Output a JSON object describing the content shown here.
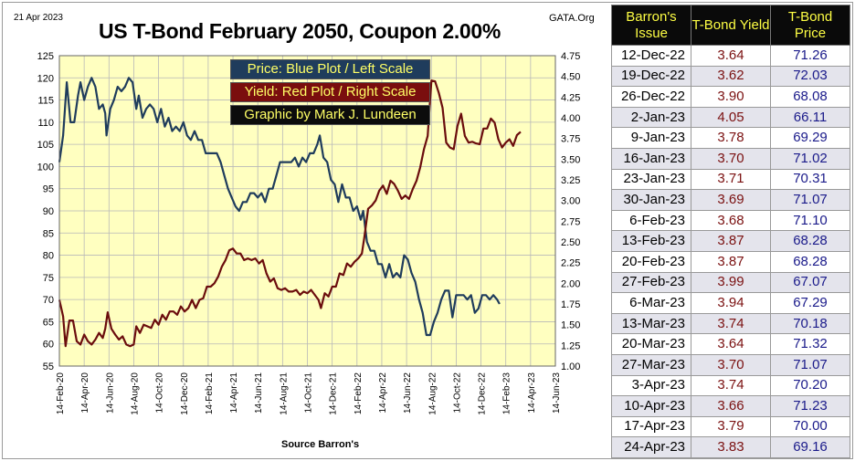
{
  "header": {
    "date": "21  Apr 2023",
    "title": "US T-Bond February 2050, Coupon 2.00%",
    "site": "GATA.Org"
  },
  "legend": [
    "Price:  Blue Plot / Left Scale",
    "Yield:  Red Plot / Right Scale",
    "Graphic by Mark J. Lundeen"
  ],
  "source": "Source Barron's",
  "colors": {
    "price_line": "#1f3c5c",
    "yield_line": "#6b0d0d",
    "plot_bg": "#ffffc0",
    "grid": "#b8b8b8"
  },
  "chart_data": {
    "type": "line",
    "title": "US T-Bond February 2050, Coupon 2.00%",
    "xlabel": "Source Barron's",
    "x_ticks": [
      "14-Feb-20",
      "14-Apr-20",
      "14-Jun-20",
      "14-Aug-20",
      "14-Oct-20",
      "14-Dec-20",
      "14-Feb-21",
      "14-Apr-21",
      "14-Jun-21",
      "14-Aug-21",
      "14-Oct-21",
      "14-Dec-21",
      "14-Feb-22",
      "14-Apr-22",
      "14-Jun-22",
      "14-Aug-22",
      "14-Oct-22",
      "14-Dec-22",
      "14-Feb-23",
      "14-Apr-23",
      "14-Jun-23"
    ],
    "left_axis": {
      "label": "Price",
      "ylim": [
        55,
        125
      ],
      "ticks": [
        "55",
        "60",
        "65",
        "70",
        "75",
        "80",
        "85",
        "90",
        "95",
        "100",
        "105",
        "110",
        "115",
        "120",
        "125"
      ]
    },
    "right_axis": {
      "label": "Yield",
      "ylim": [
        1.0,
        4.75
      ],
      "ticks": [
        "1.00",
        "1.25",
        "1.50",
        "1.75",
        "2.00",
        "2.25",
        "2.50",
        "2.75",
        "3.00",
        "3.25",
        "3.50",
        "3.75",
        "4.00",
        "4.25",
        "4.50",
        "4.75"
      ]
    },
    "grid": true,
    "x_index_range": [
      0,
      20
    ],
    "series": [
      {
        "name": "Price",
        "axis": "left",
        "points": [
          [
            0.0,
            101
          ],
          [
            0.15,
            107
          ],
          [
            0.3,
            119
          ],
          [
            0.45,
            110
          ],
          [
            0.6,
            110
          ],
          [
            0.75,
            116
          ],
          [
            0.85,
            119
          ],
          [
            1.0,
            115
          ],
          [
            1.15,
            118
          ],
          [
            1.3,
            120
          ],
          [
            1.45,
            118
          ],
          [
            1.6,
            113
          ],
          [
            1.75,
            114
          ],
          [
            1.85,
            112
          ],
          [
            1.9,
            107
          ],
          [
            2.05,
            113
          ],
          [
            2.2,
            115
          ],
          [
            2.35,
            118
          ],
          [
            2.5,
            117
          ],
          [
            2.65,
            118
          ],
          [
            2.8,
            120
          ],
          [
            2.95,
            119
          ],
          [
            3.1,
            113
          ],
          [
            3.2,
            116
          ],
          [
            3.35,
            111
          ],
          [
            3.5,
            113
          ],
          [
            3.65,
            114
          ],
          [
            3.8,
            113
          ],
          [
            3.95,
            110
          ],
          [
            4.1,
            113
          ],
          [
            4.25,
            109
          ],
          [
            4.4,
            111
          ],
          [
            4.55,
            108
          ],
          [
            4.7,
            109
          ],
          [
            4.85,
            108
          ],
          [
            5.0,
            110
          ],
          [
            5.15,
            107
          ],
          [
            5.3,
            106
          ],
          [
            5.45,
            108
          ],
          [
            5.6,
            106
          ],
          [
            5.75,
            106
          ],
          [
            5.9,
            103
          ],
          [
            6.05,
            103
          ],
          [
            6.2,
            103
          ],
          [
            6.35,
            103
          ],
          [
            6.5,
            101
          ],
          [
            6.65,
            98
          ],
          [
            6.8,
            95
          ],
          [
            6.95,
            93
          ],
          [
            7.1,
            91
          ],
          [
            7.25,
            90
          ],
          [
            7.4,
            92
          ],
          [
            7.55,
            92
          ],
          [
            7.7,
            94
          ],
          [
            7.85,
            94
          ],
          [
            8.0,
            93
          ],
          [
            8.15,
            94
          ],
          [
            8.3,
            92
          ],
          [
            8.45,
            95
          ],
          [
            8.6,
            95
          ],
          [
            8.75,
            98
          ],
          [
            8.9,
            101
          ],
          [
            9.05,
            101
          ],
          [
            9.2,
            101
          ],
          [
            9.35,
            101
          ],
          [
            9.5,
            102
          ],
          [
            9.65,
            100
          ],
          [
            9.8,
            102
          ],
          [
            9.95,
            101
          ],
          [
            10.1,
            103
          ],
          [
            10.25,
            103
          ],
          [
            10.4,
            105
          ],
          [
            10.5,
            107
          ],
          [
            10.65,
            102
          ],
          [
            10.8,
            101
          ],
          [
            10.95,
            97
          ],
          [
            11.1,
            96
          ],
          [
            11.25,
            92
          ],
          [
            11.4,
            96
          ],
          [
            11.55,
            93
          ],
          [
            11.7,
            93
          ],
          [
            11.85,
            90
          ],
          [
            12.0,
            91
          ],
          [
            12.15,
            88
          ],
          [
            12.25,
            90
          ],
          [
            12.4,
            83
          ],
          [
            12.55,
            81
          ],
          [
            12.7,
            81
          ],
          [
            12.85,
            78
          ],
          [
            13.0,
            78
          ],
          [
            13.15,
            75
          ],
          [
            13.3,
            78
          ],
          [
            13.45,
            75
          ],
          [
            13.6,
            76
          ],
          [
            13.75,
            75
          ],
          [
            13.9,
            80
          ],
          [
            14.05,
            79
          ],
          [
            14.2,
            76
          ],
          [
            14.35,
            74
          ],
          [
            14.5,
            70
          ],
          [
            14.65,
            67
          ],
          [
            14.8,
            62
          ],
          [
            14.95,
            62
          ],
          [
            15.1,
            65
          ],
          [
            15.25,
            67
          ],
          [
            15.4,
            70
          ],
          [
            15.55,
            72
          ],
          [
            15.7,
            72
          ],
          [
            15.85,
            66
          ],
          [
            16.0,
            71
          ],
          [
            16.15,
            71
          ],
          [
            16.3,
            71
          ],
          [
            16.45,
            70
          ],
          [
            16.6,
            71
          ],
          [
            16.75,
            67
          ],
          [
            16.9,
            68
          ],
          [
            17.05,
            71
          ],
          [
            17.2,
            71
          ],
          [
            17.35,
            70
          ],
          [
            17.5,
            71
          ],
          [
            17.65,
            70
          ],
          [
            17.75,
            69
          ]
        ]
      },
      {
        "name": "Yield",
        "axis": "right",
        "points": [
          [
            0.0,
            1.8
          ],
          [
            0.15,
            1.6
          ],
          [
            0.25,
            1.24
          ],
          [
            0.4,
            1.55
          ],
          [
            0.55,
            1.55
          ],
          [
            0.7,
            1.3
          ],
          [
            0.85,
            1.26
          ],
          [
            1.0,
            1.38
          ],
          [
            1.15,
            1.3
          ],
          [
            1.3,
            1.26
          ],
          [
            1.45,
            1.32
          ],
          [
            1.6,
            1.4
          ],
          [
            1.75,
            1.34
          ],
          [
            1.85,
            1.45
          ],
          [
            1.95,
            1.65
          ],
          [
            2.1,
            1.45
          ],
          [
            2.25,
            1.38
          ],
          [
            2.4,
            1.32
          ],
          [
            2.55,
            1.36
          ],
          [
            2.7,
            1.26
          ],
          [
            2.85,
            1.24
          ],
          [
            3.0,
            1.26
          ],
          [
            3.1,
            1.48
          ],
          [
            3.25,
            1.4
          ],
          [
            3.4,
            1.5
          ],
          [
            3.55,
            1.48
          ],
          [
            3.7,
            1.46
          ],
          [
            3.85,
            1.56
          ],
          [
            4.0,
            1.5
          ],
          [
            4.15,
            1.62
          ],
          [
            4.3,
            1.56
          ],
          [
            4.45,
            1.66
          ],
          [
            4.6,
            1.66
          ],
          [
            4.75,
            1.62
          ],
          [
            4.9,
            1.72
          ],
          [
            5.05,
            1.66
          ],
          [
            5.2,
            1.7
          ],
          [
            5.35,
            1.8
          ],
          [
            5.5,
            1.7
          ],
          [
            5.65,
            1.8
          ],
          [
            5.8,
            1.82
          ],
          [
            5.95,
            1.96
          ],
          [
            6.1,
            1.96
          ],
          [
            6.25,
            2.0
          ],
          [
            6.4,
            2.08
          ],
          [
            6.55,
            2.2
          ],
          [
            6.7,
            2.28
          ],
          [
            6.85,
            2.4
          ],
          [
            7.0,
            2.42
          ],
          [
            7.15,
            2.36
          ],
          [
            7.3,
            2.36
          ],
          [
            7.45,
            2.28
          ],
          [
            7.6,
            2.3
          ],
          [
            7.75,
            2.28
          ],
          [
            7.9,
            2.3
          ],
          [
            8.05,
            2.24
          ],
          [
            8.2,
            2.28
          ],
          [
            8.35,
            2.12
          ],
          [
            8.5,
            2.02
          ],
          [
            8.65,
            2.06
          ],
          [
            8.8,
            1.94
          ],
          [
            8.95,
            1.92
          ],
          [
            9.1,
            1.94
          ],
          [
            9.25,
            1.9
          ],
          [
            9.4,
            1.9
          ],
          [
            9.55,
            1.92
          ],
          [
            9.7,
            1.86
          ],
          [
            9.85,
            1.9
          ],
          [
            10.0,
            1.88
          ],
          [
            10.15,
            1.92
          ],
          [
            10.3,
            1.86
          ],
          [
            10.45,
            1.8
          ],
          [
            10.55,
            1.7
          ],
          [
            10.7,
            1.88
          ],
          [
            10.85,
            1.84
          ],
          [
            11.0,
            1.96
          ],
          [
            11.15,
            1.96
          ],
          [
            11.3,
            2.12
          ],
          [
            11.45,
            2.1
          ],
          [
            11.6,
            2.24
          ],
          [
            11.75,
            2.2
          ],
          [
            11.9,
            2.26
          ],
          [
            12.05,
            2.3
          ],
          [
            12.2,
            2.36
          ],
          [
            12.3,
            2.56
          ],
          [
            12.45,
            2.9
          ],
          [
            12.6,
            2.94
          ],
          [
            12.75,
            3.0
          ],
          [
            12.9,
            3.12
          ],
          [
            13.05,
            3.18
          ],
          [
            13.2,
            3.08
          ],
          [
            13.35,
            3.24
          ],
          [
            13.5,
            3.2
          ],
          [
            13.65,
            3.12
          ],
          [
            13.8,
            3.02
          ],
          [
            13.95,
            3.06
          ],
          [
            14.1,
            3.02
          ],
          [
            14.25,
            3.14
          ],
          [
            14.4,
            3.24
          ],
          [
            14.55,
            3.4
          ],
          [
            14.7,
            3.62
          ],
          [
            14.85,
            3.78
          ],
          [
            15.0,
            4.45
          ],
          [
            15.15,
            4.44
          ],
          [
            15.3,
            4.3
          ],
          [
            15.45,
            4.12
          ],
          [
            15.6,
            3.7
          ],
          [
            15.75,
            3.64
          ],
          [
            15.9,
            3.62
          ],
          [
            16.05,
            3.9
          ],
          [
            16.2,
            4.05
          ],
          [
            16.35,
            3.78
          ],
          [
            16.5,
            3.7
          ],
          [
            16.65,
            3.71
          ],
          [
            16.8,
            3.69
          ],
          [
            16.95,
            3.68
          ],
          [
            17.1,
            3.87
          ],
          [
            17.25,
            3.87
          ],
          [
            17.4,
            3.99
          ],
          [
            17.55,
            3.94
          ],
          [
            17.7,
            3.74
          ],
          [
            17.85,
            3.64
          ],
          [
            18.0,
            3.7
          ],
          [
            18.15,
            3.74
          ],
          [
            18.3,
            3.66
          ],
          [
            18.45,
            3.79
          ],
          [
            18.6,
            3.83
          ]
        ]
      }
    ]
  },
  "table": {
    "headers": [
      "Barron's Issue",
      "T-Bond Yield",
      "T-Bond Price"
    ],
    "rows": [
      [
        "12-Dec-22",
        "3.64",
        "71.26"
      ],
      [
        "19-Dec-22",
        "3.62",
        "72.03"
      ],
      [
        "26-Dec-22",
        "3.90",
        "68.08"
      ],
      [
        "2-Jan-23",
        "4.05",
        "66.11"
      ],
      [
        "9-Jan-23",
        "3.78",
        "69.29"
      ],
      [
        "16-Jan-23",
        "3.70",
        "71.02"
      ],
      [
        "23-Jan-23",
        "3.71",
        "70.31"
      ],
      [
        "30-Jan-23",
        "3.69",
        "71.07"
      ],
      [
        "6-Feb-23",
        "3.68",
        "71.10"
      ],
      [
        "13-Feb-23",
        "3.87",
        "68.28"
      ],
      [
        "20-Feb-23",
        "3.87",
        "68.28"
      ],
      [
        "27-Feb-23",
        "3.99",
        "67.07"
      ],
      [
        "6-Mar-23",
        "3.94",
        "67.29"
      ],
      [
        "13-Mar-23",
        "3.74",
        "70.18"
      ],
      [
        "20-Mar-23",
        "3.64",
        "71.32"
      ],
      [
        "27-Mar-23",
        "3.70",
        "71.07"
      ],
      [
        "3-Apr-23",
        "3.74",
        "70.20"
      ],
      [
        "10-Apr-23",
        "3.66",
        "71.23"
      ],
      [
        "17-Apr-23",
        "3.79",
        "70.00"
      ],
      [
        "24-Apr-23",
        "3.83",
        "69.16"
      ]
    ]
  }
}
